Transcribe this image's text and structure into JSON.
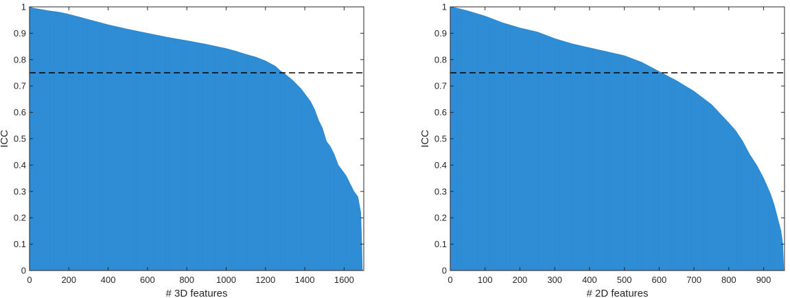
{
  "chart_data": [
    {
      "type": "area",
      "title": "",
      "xlabel": "# 3D features",
      "ylabel": "ICC",
      "xlim": [
        0,
        1700
      ],
      "ylim": [
        0,
        1
      ],
      "xticks": [
        0,
        200,
        400,
        600,
        800,
        1000,
        1200,
        1400,
        1600
      ],
      "yticks": [
        0,
        0.1,
        0.2,
        0.3,
        0.4,
        0.5,
        0.6,
        0.7,
        0.8,
        0.9,
        1
      ],
      "grid": false,
      "fill_color": "#2e8ed6",
      "threshold": {
        "y": 0.75,
        "style": "dashed",
        "color": "#000000"
      },
      "series": [
        {
          "x": [
            0,
            20,
            60,
            100,
            150,
            200,
            250,
            300,
            400,
            500,
            600,
            700,
            800,
            900,
            1000,
            1050,
            1100,
            1150,
            1200,
            1250,
            1280,
            1300,
            1340,
            1380,
            1400,
            1430,
            1450,
            1470,
            1490,
            1510,
            1530,
            1550,
            1570,
            1590,
            1610,
            1630,
            1650,
            1670,
            1685,
            1690,
            1693
          ],
          "y": [
            1.0,
            0.995,
            0.99,
            0.985,
            0.98,
            0.972,
            0.962,
            0.952,
            0.932,
            0.915,
            0.9,
            0.885,
            0.872,
            0.858,
            0.842,
            0.832,
            0.82,
            0.81,
            0.795,
            0.775,
            0.755,
            0.745,
            0.72,
            0.69,
            0.67,
            0.64,
            0.61,
            0.57,
            0.54,
            0.49,
            0.47,
            0.44,
            0.4,
            0.38,
            0.36,
            0.33,
            0.3,
            0.28,
            0.22,
            0.1,
            0.0
          ]
        }
      ]
    },
    {
      "type": "area",
      "title": "",
      "xlabel": "# 2D features",
      "ylabel": "ICC",
      "xlim": [
        0,
        960
      ],
      "ylim": [
        0,
        1
      ],
      "xticks": [
        0,
        100,
        200,
        300,
        400,
        500,
        600,
        700,
        800,
        900
      ],
      "yticks": [
        0,
        0.1,
        0.2,
        0.3,
        0.4,
        0.5,
        0.6,
        0.7,
        0.8,
        0.9,
        1
      ],
      "grid": false,
      "fill_color": "#2e8ed6",
      "threshold": {
        "y": 0.75,
        "style": "dashed",
        "color": "#000000"
      },
      "series": [
        {
          "x": [
            0,
            20,
            50,
            100,
            150,
            200,
            250,
            300,
            350,
            400,
            450,
            500,
            550,
            600,
            650,
            700,
            750,
            800,
            820,
            840,
            860,
            880,
            900,
            920,
            930,
            940,
            950,
            955,
            958
          ],
          "y": [
            1.0,
            0.995,
            0.985,
            0.965,
            0.94,
            0.92,
            0.905,
            0.88,
            0.86,
            0.845,
            0.83,
            0.815,
            0.79,
            0.755,
            0.72,
            0.68,
            0.63,
            0.56,
            0.53,
            0.49,
            0.44,
            0.4,
            0.35,
            0.29,
            0.25,
            0.2,
            0.15,
            0.1,
            0.0
          ]
        }
      ]
    }
  ]
}
